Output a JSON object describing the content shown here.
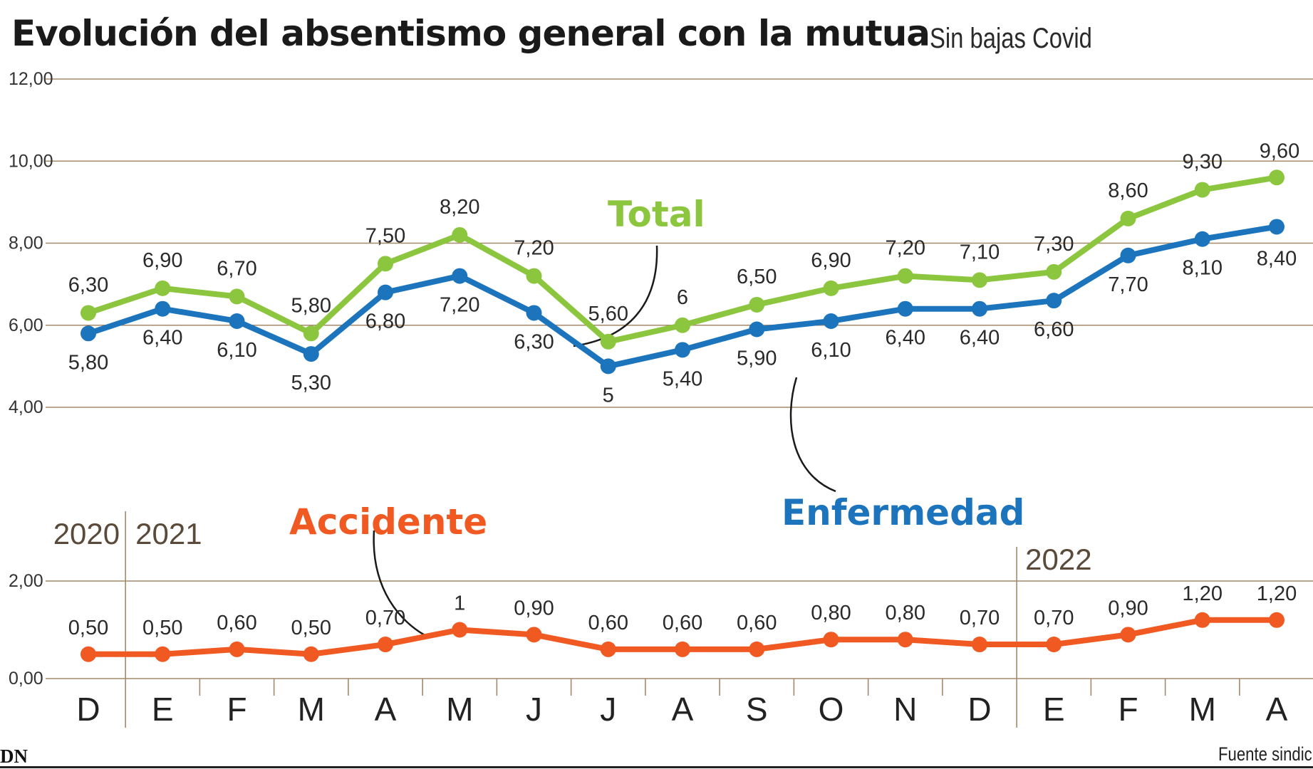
{
  "title": "Evolución del absentismo general con la mutua",
  "subtitle": "Sin bajas Covid",
  "logo_text": "DN",
  "source": "Fuente sindic",
  "colors": {
    "total": "#8cc63f",
    "enfermedad": "#1c75bc",
    "accidente": "#f05a22",
    "grid": "#a48a6a",
    "text": "#2a2a2a"
  },
  "chart_data": [
    {
      "type": "line",
      "categories": [
        "D",
        "E",
        "F",
        "M",
        "A",
        "M",
        "J",
        "J",
        "A",
        "S",
        "O",
        "N",
        "D",
        "E",
        "F",
        "M",
        "A"
      ],
      "year_labels": [
        "2020",
        "2021",
        "2022"
      ],
      "ylim": [
        4,
        12
      ],
      "yticks": [
        "12,00",
        "10,00",
        "8,00",
        "6,00",
        "4,00"
      ],
      "grid": true,
      "series": [
        {
          "name": "Total",
          "values": [
            6.3,
            6.9,
            6.7,
            5.8,
            7.5,
            8.2,
            7.2,
            5.6,
            6.0,
            6.5,
            6.9,
            7.2,
            7.1,
            7.3,
            8.6,
            9.3,
            9.6
          ],
          "labels": [
            "6,30",
            "6,90",
            "6,70",
            "5,80",
            "7,50",
            "8,20",
            "7,20",
            "5,60",
            "6",
            "6,50",
            "6,90",
            "7,20",
            "7,10",
            "7,30",
            "8,60",
            "9,30",
            "9,60"
          ]
        },
        {
          "name": "Enfermedad",
          "values": [
            5.8,
            6.4,
            6.1,
            5.3,
            6.8,
            7.2,
            6.3,
            5.0,
            5.4,
            5.9,
            6.1,
            6.4,
            6.4,
            6.6,
            7.7,
            8.1,
            8.4
          ],
          "labels": [
            "5,80",
            "6,40",
            "6,10",
            "5,30",
            "6,80",
            "7,20",
            "6,30",
            "5",
            "5,40",
            "5,90",
            "6,10",
            "6,40",
            "6,40",
            "6,60",
            "7,70",
            "8,10",
            "8,40"
          ]
        }
      ]
    },
    {
      "type": "line",
      "categories": [
        "D",
        "E",
        "F",
        "M",
        "A",
        "M",
        "J",
        "J",
        "A",
        "S",
        "O",
        "N",
        "D",
        "E",
        "F",
        "M",
        "A"
      ],
      "ylim": [
        0,
        2
      ],
      "yticks": [
        "2,00",
        "0,00"
      ],
      "grid": true,
      "series": [
        {
          "name": "Accidente",
          "values": [
            0.5,
            0.5,
            0.6,
            0.5,
            0.7,
            1.0,
            0.9,
            0.6,
            0.6,
            0.6,
            0.8,
            0.8,
            0.7,
            0.7,
            0.9,
            1.2,
            1.2
          ],
          "labels": [
            "0,50",
            "0,50",
            "0,60",
            "0,50",
            "0,70",
            "1",
            "0,90",
            "0,60",
            "0,60",
            "0,60",
            "0,80",
            "0,80",
            "0,70",
            "0,70",
            "0,90",
            "1,20",
            "1,20"
          ]
        }
      ]
    }
  ]
}
